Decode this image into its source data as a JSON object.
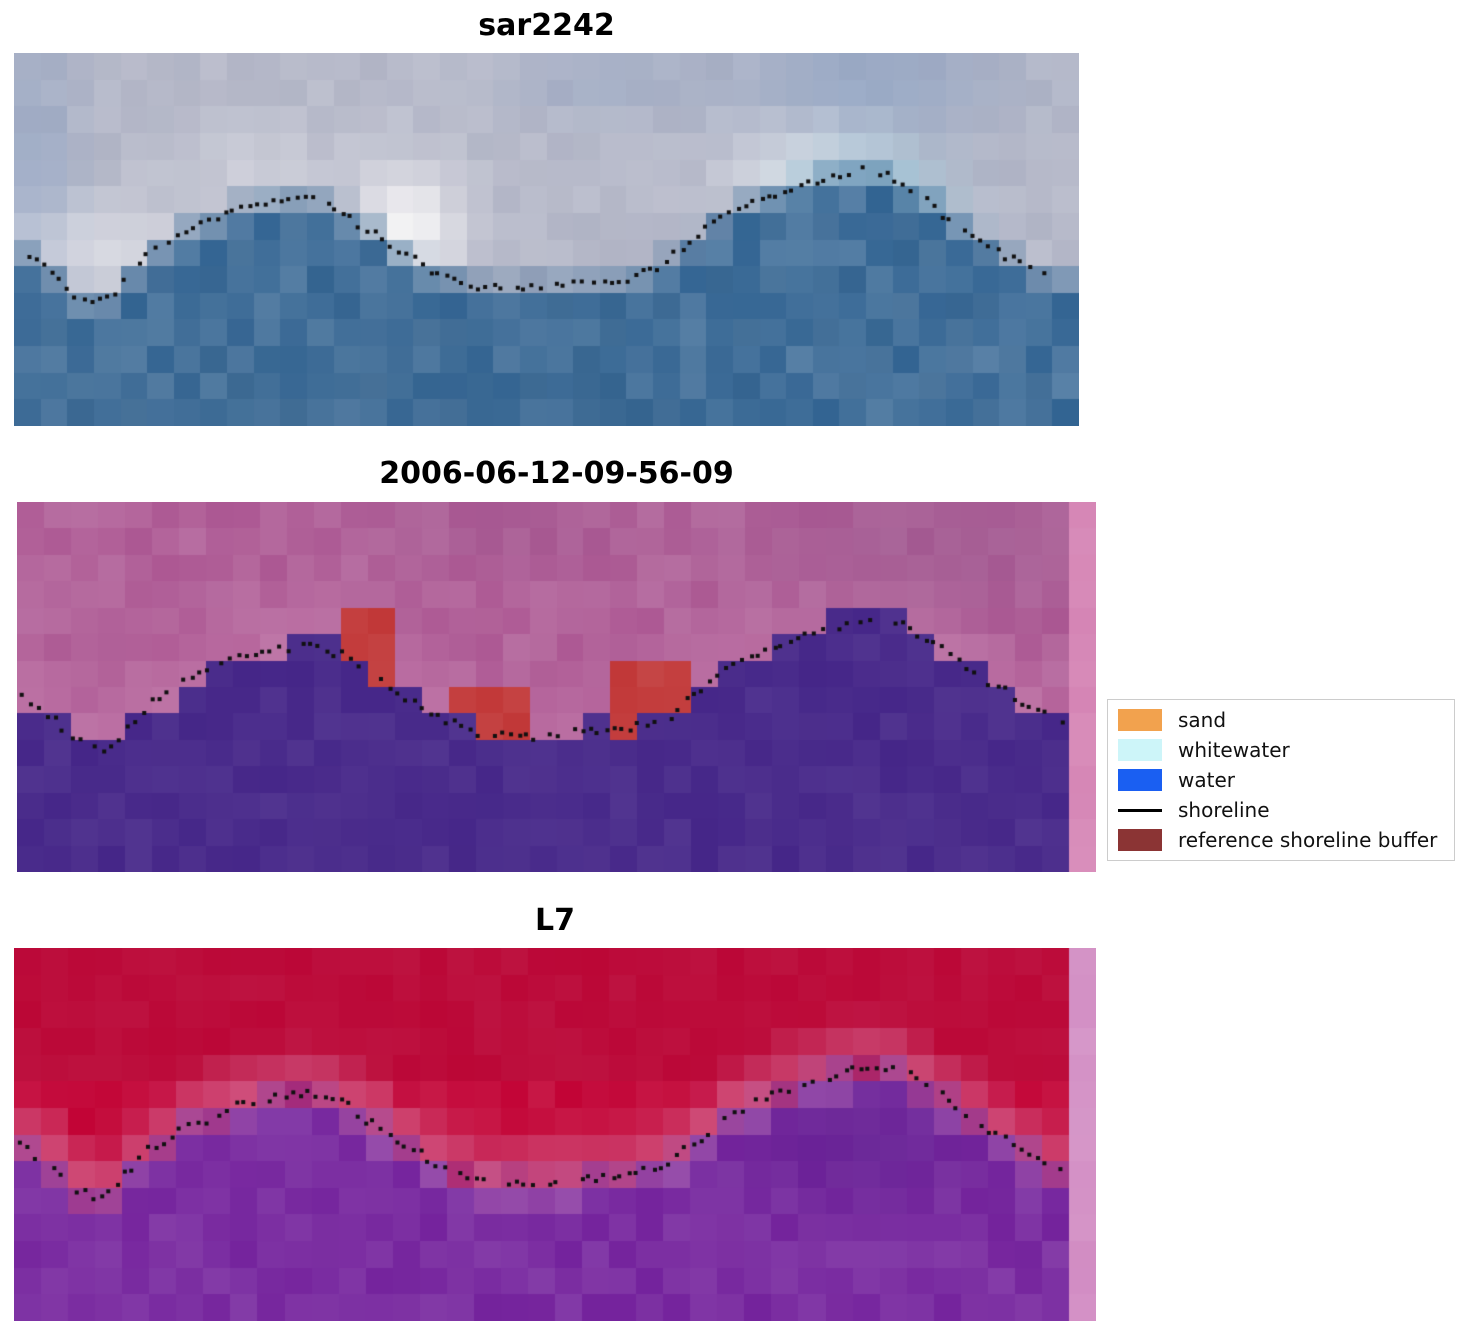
{
  "figure": {
    "background": "#ffffff",
    "panels": [
      {
        "id": "sar",
        "title": "sar2242",
        "seed": 7,
        "kind": "sar",
        "colors": {
          "sky_base": "#b6b9c9",
          "sky_shadow": "#7e98bf",
          "white_blob": "#f6f5f6",
          "cyan_blob": "#a0e2f2",
          "water_base": "#46739d",
          "water_dark": "#38648c"
        }
      },
      {
        "id": "classified",
        "title": "2006-06-12-09-56-09",
        "seed": 21,
        "kind": "classified",
        "colors": {
          "land_base": "#b2639a",
          "land_light": "#c77fae",
          "land_shadow": "#9a5b90",
          "water": "#4b2d8c",
          "buffer_red": "#c33d3d",
          "edge_strip": "#d78ab8"
        },
        "red_patches": [
          {
            "t0": 0.305,
            "t1": 0.36,
            "v0": 0.28,
            "v1": 0.5
          },
          {
            "t0": 0.395,
            "t1": 0.47,
            "v0": 0.52,
            "v1": 0.63
          },
          {
            "t0": 0.55,
            "t1": 0.62,
            "v0": 0.4,
            "v1": 0.63
          }
        ]
      },
      {
        "id": "l7",
        "title": "L7",
        "seed": 42,
        "kind": "l7",
        "colors": {
          "land_base": "#c50f3f",
          "land_dark": "#b30a37",
          "halo": "#d4719c",
          "water": "#7c2fa2",
          "water_dark": "#5e1f90",
          "water_halo": "#a95fae",
          "edge_strip": "#d492c6"
        }
      }
    ],
    "legend": {
      "entries": [
        {
          "label": "sand",
          "type": "patch",
          "color": "#f2a24e"
        },
        {
          "label": "whitewater",
          "type": "patch",
          "color": "#cdf5f9"
        },
        {
          "label": "water",
          "type": "patch",
          "color": "#1a5ff2"
        },
        {
          "label": "shoreline",
          "type": "line",
          "color": "#000000"
        },
        {
          "label": "reference shoreline buffer",
          "type": "patch",
          "color": "#8b3434"
        }
      ]
    }
  },
  "chart_data": {
    "type": "heatmap",
    "title": "",
    "panels": [
      {
        "title": "sar2242",
        "description": "satellite RGB crop with detected shoreline dots"
      },
      {
        "title": "2006-06-12-09-56-09",
        "description": "classified image: land pink, water purple, red reference shoreline buffer patches, dotted shoreline"
      },
      {
        "title": "L7",
        "description": "Landsat 7 false-colour crop: red land, purple water, dotted shoreline"
      }
    ],
    "legend_entries": [
      "sand",
      "whitewater",
      "water",
      "shoreline",
      "reference shoreline buffer"
    ],
    "shoreline_normalized": [
      [
        0.005,
        0.53
      ],
      [
        0.03,
        0.575
      ],
      [
        0.055,
        0.645
      ],
      [
        0.075,
        0.67
      ],
      [
        0.09,
        0.655
      ],
      [
        0.105,
        0.6
      ],
      [
        0.13,
        0.53
      ],
      [
        0.17,
        0.465
      ],
      [
        0.21,
        0.42
      ],
      [
        0.25,
        0.395
      ],
      [
        0.275,
        0.39
      ],
      [
        0.3,
        0.41
      ],
      [
        0.33,
        0.47
      ],
      [
        0.36,
        0.53
      ],
      [
        0.4,
        0.59
      ],
      [
        0.43,
        0.625
      ],
      [
        0.47,
        0.635
      ],
      [
        0.52,
        0.62
      ],
      [
        0.56,
        0.615
      ],
      [
        0.6,
        0.585
      ],
      [
        0.63,
        0.52
      ],
      [
        0.66,
        0.45
      ],
      [
        0.685,
        0.41
      ],
      [
        0.71,
        0.385
      ],
      [
        0.74,
        0.355
      ],
      [
        0.77,
        0.33
      ],
      [
        0.795,
        0.315
      ],
      [
        0.82,
        0.33
      ],
      [
        0.85,
        0.385
      ],
      [
        0.88,
        0.445
      ],
      [
        0.91,
        0.505
      ],
      [
        0.94,
        0.555
      ],
      [
        0.97,
        0.6
      ]
    ]
  }
}
